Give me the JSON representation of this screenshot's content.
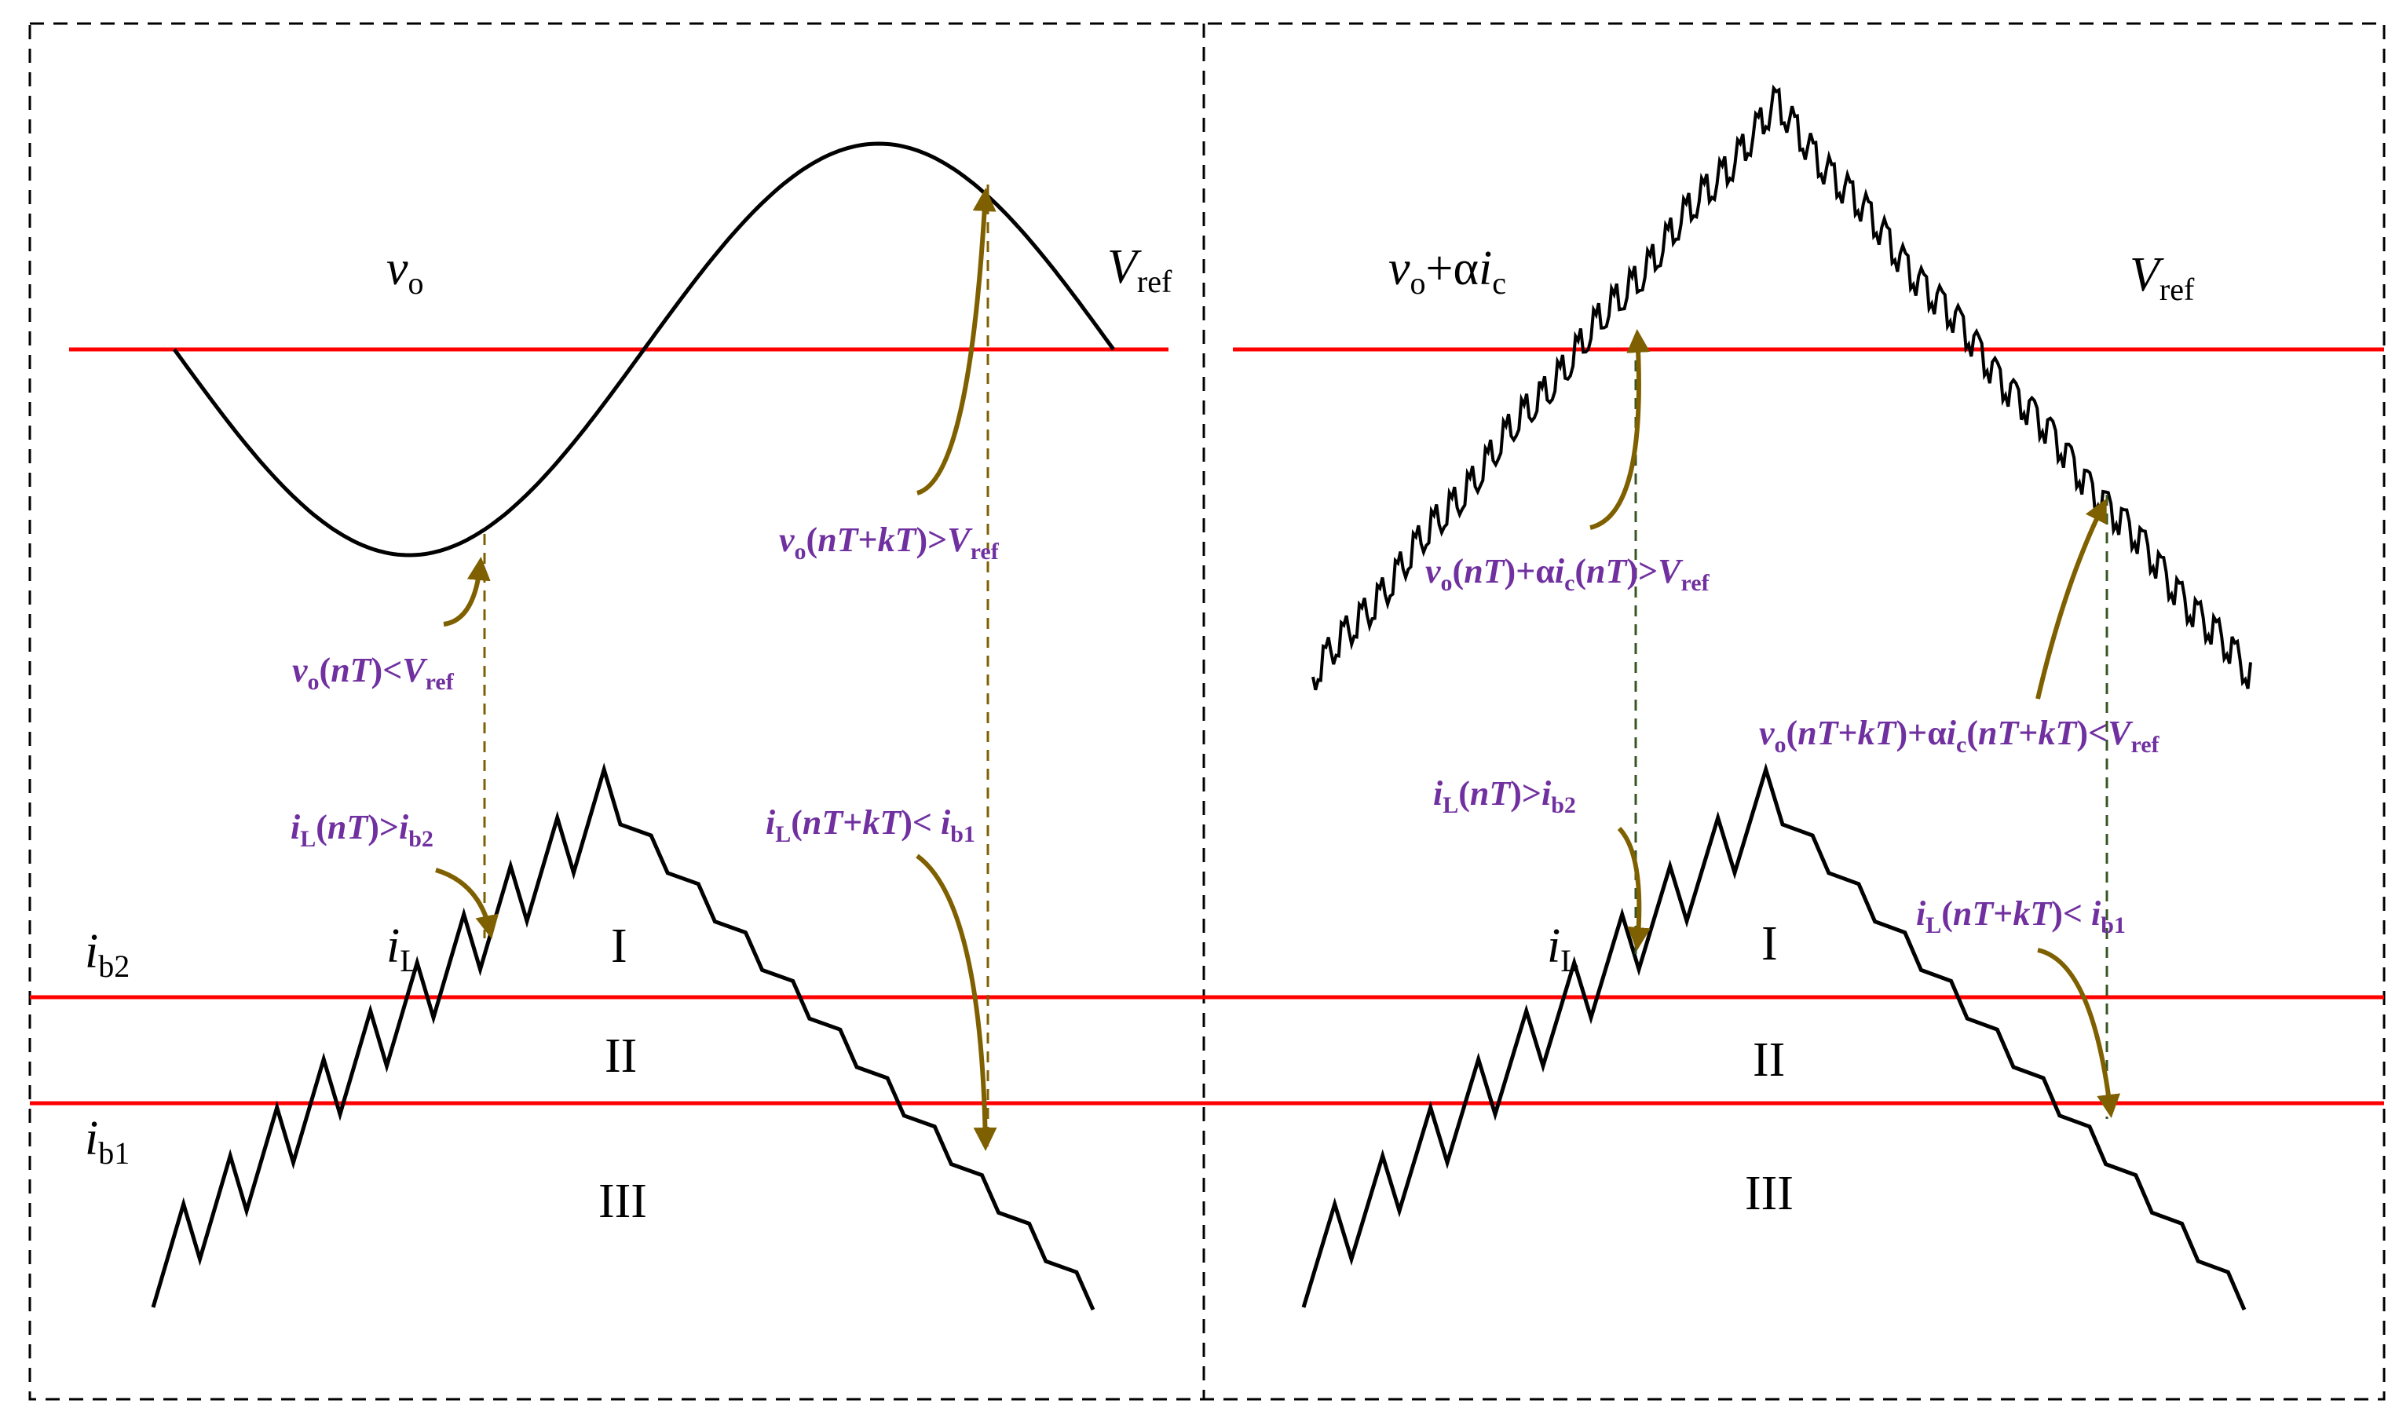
{
  "colors": {
    "reference_line": "#FF0000",
    "waveform": "#000000",
    "arrow": "#7F6000",
    "condition_text": "#7030A0",
    "frame": "#000000"
  },
  "left_panel": {
    "vo_label": "v",
    "vo_sub": "o",
    "vref_label": "V",
    "vref_sub": "ref",
    "ib2_label": "i",
    "ib2_sub": "b2",
    "ib1_label": "i",
    "ib1_sub": "b1",
    "il_label": "i",
    "il_sub": "L",
    "region_1": "I",
    "region_2": "II",
    "region_3": "III",
    "cond_vo_lt": {
      "a": "v",
      "b": "o",
      "c": "(",
      "d": "nT",
      "e": ")<",
      "f": "V",
      "g": "ref"
    },
    "cond_vo_gt": {
      "a": "v",
      "b": "o",
      "c": "(",
      "d": "nT",
      "e": "+",
      "f": "kT",
      "g": ")>",
      "h": "V",
      "i": "ref"
    },
    "cond_il_gt": {
      "a": "i",
      "b": "L",
      "c": "(",
      "d": "nT",
      "e": ")>",
      "f": "i",
      "g": "b2"
    },
    "cond_il_lt": {
      "a": "i",
      "b": "L",
      "c": "(",
      "d": "nT",
      "e": "+",
      "f": "kT",
      "g": ")< ",
      "h": "i",
      "i": "b1"
    }
  },
  "right_panel": {
    "sum_label": {
      "a": "v",
      "b": "o",
      "c": "+α",
      "d": "i",
      "e": "c"
    },
    "vref_label": "V",
    "vref_sub": "ref",
    "il_label": "i",
    "il_sub": "L",
    "region_1": "I",
    "region_2": "II",
    "region_3": "III",
    "cond_sum_gt": {
      "a": "v",
      "b": "o",
      "c": "(",
      "d": "nT",
      "e": ")+α",
      "f": "i",
      "g": "c",
      "h": "(",
      "i": "nT",
      "j": ")>",
      "k": "V",
      "l": "ref"
    },
    "cond_sum_lt": {
      "a": "v",
      "b": "o",
      "c": "(",
      "d": "nT",
      "e": "+",
      "f": "kT",
      "g": ")+α",
      "h": "i",
      "i": "c",
      "j": "(",
      "k": "nT",
      "l": "+",
      "m": "kT",
      "n": ")<",
      "o": "V",
      "p": "ref"
    },
    "cond_il_gt": {
      "a": "i",
      "b": "L",
      "c": "(",
      "d": "nT",
      "e": ")>",
      "f": "i",
      "g": "b2"
    },
    "cond_il_lt": {
      "a": "i",
      "b": "L",
      "c": "(",
      "d": "nT",
      "e": "+",
      "f": "kT",
      "g": ")< ",
      "h": "i",
      "i": "b1"
    }
  }
}
